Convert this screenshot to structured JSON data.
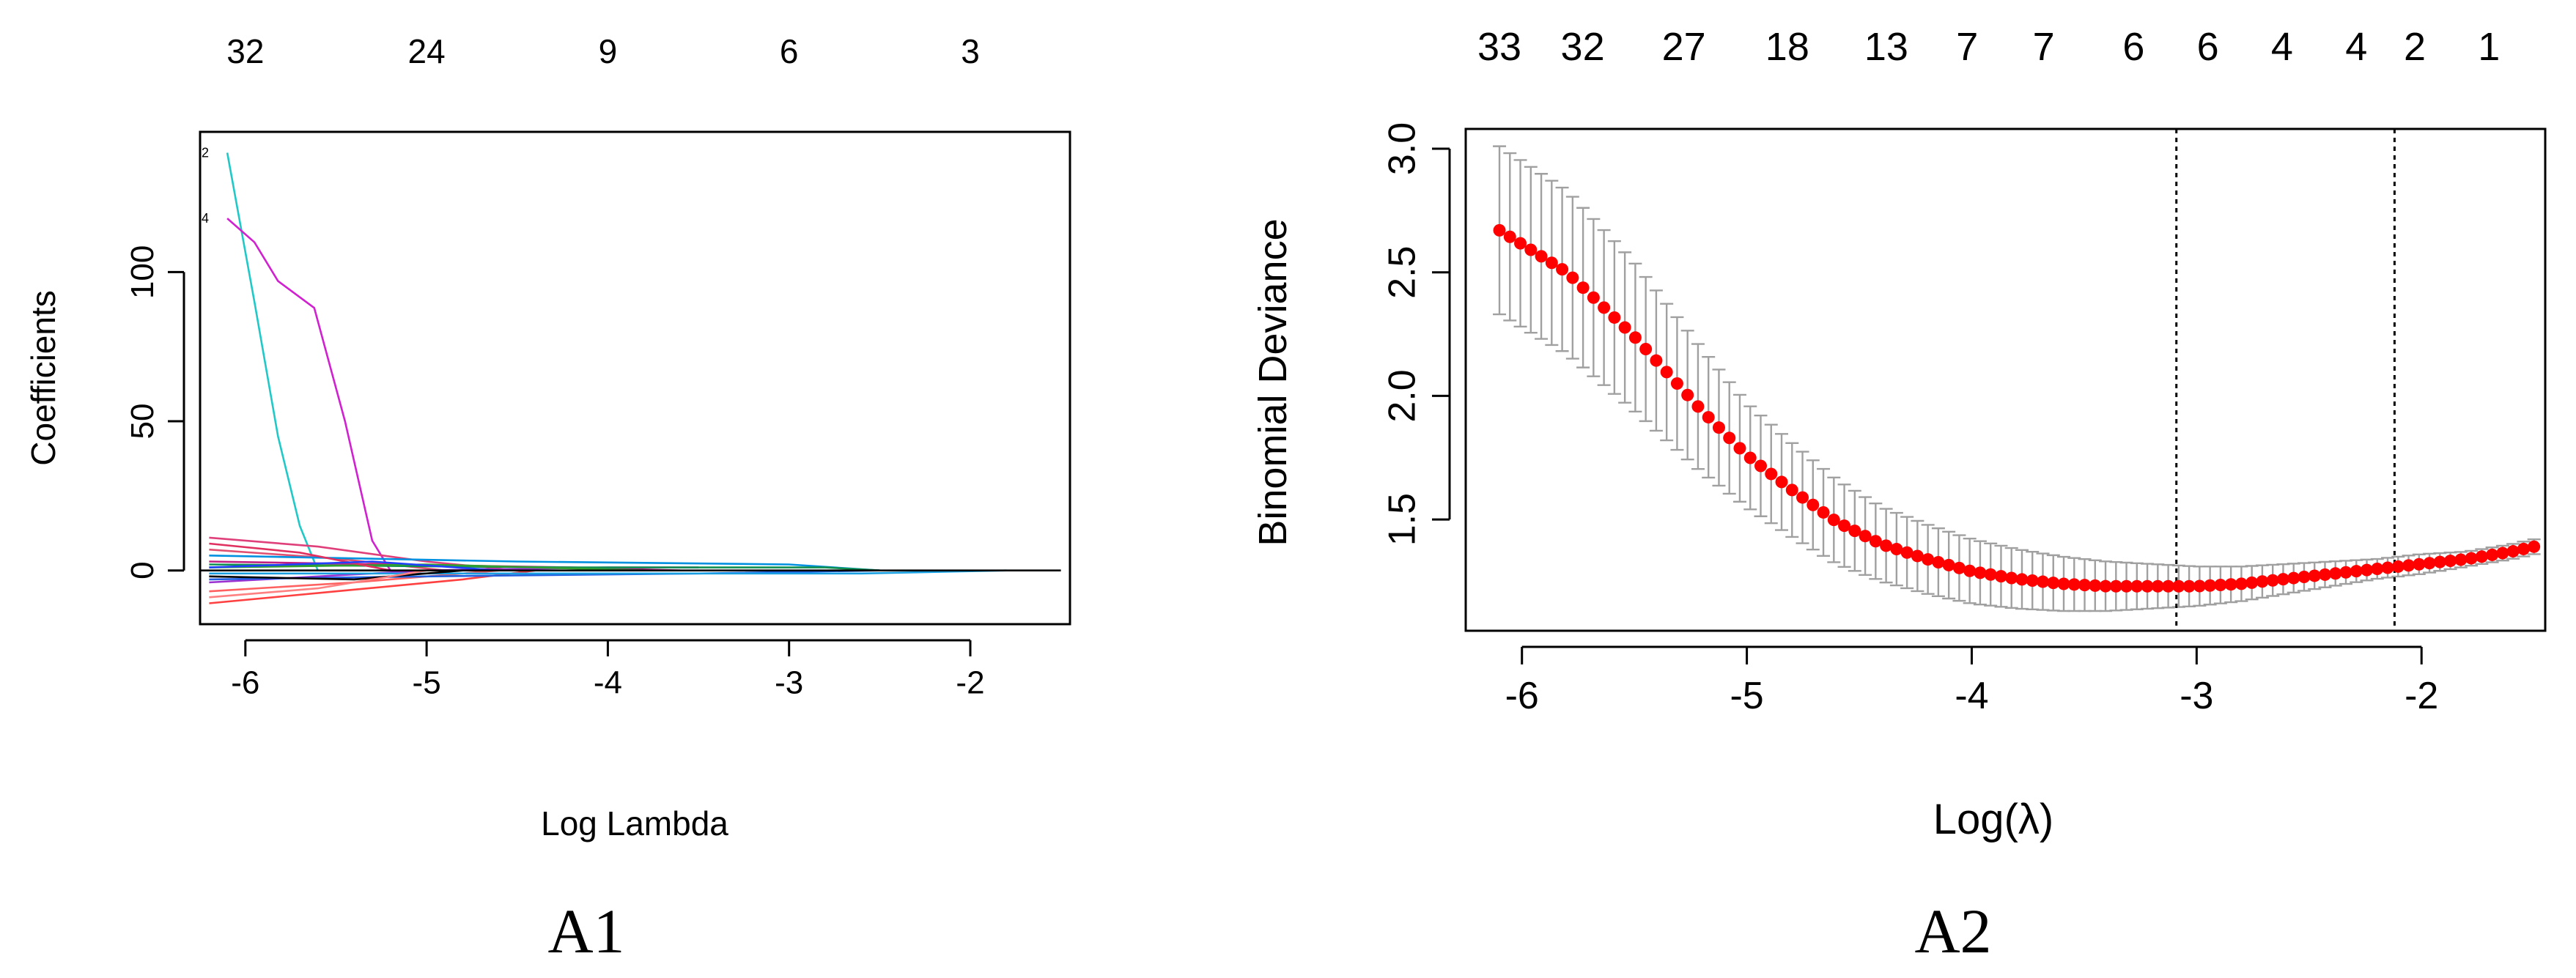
{
  "chart_data": [
    {
      "panel_label": "A1",
      "type": "line",
      "xlabel": "Log Lambda",
      "ylabel": "Coefficients",
      "xlim": [
        -6.25,
        -1.45
      ],
      "ylim": [
        -18,
        147
      ],
      "x_ticks": [
        "-6",
        "-5",
        "-4",
        "-3",
        "-2"
      ],
      "y_ticks": [
        "0",
        "50",
        "100"
      ],
      "top_axis": {
        "positions": [
          -6.0,
          -5.0,
          -4.0,
          -3.0,
          -2.0
        ],
        "labels": [
          "32",
          "24",
          "9",
          "6",
          "3"
        ]
      },
      "left_edge_labels": [
        {
          "text": "2",
          "y": 140
        },
        {
          "text": "4",
          "y": 118
        }
      ],
      "series": [
        {
          "color": "#20c8c8",
          "x": [
            -6.1,
            -5.95,
            -5.82,
            -5.7,
            -5.6
          ],
          "y": [
            140,
            90,
            45,
            15,
            0
          ]
        },
        {
          "color": "#d020d0",
          "x": [
            -6.1,
            -5.95,
            -5.82,
            -5.62,
            -5.45,
            -5.3,
            -5.2
          ],
          "y": [
            118,
            110,
            97,
            88,
            50,
            10,
            0
          ]
        },
        {
          "color": "#e0407a",
          "x": [
            -6.2,
            -5.6,
            -5.0,
            -4.5
          ],
          "y": [
            11,
            8,
            3,
            0
          ]
        },
        {
          "color": "#ff4040",
          "x": [
            -6.2,
            -5.5,
            -4.8,
            -4.4
          ],
          "y": [
            -11,
            -7,
            -3,
            0
          ]
        },
        {
          "color": "#e05070",
          "x": [
            -6.2,
            -5.5,
            -4.9
          ],
          "y": [
            7,
            4,
            0
          ]
        },
        {
          "color": "#ff6060",
          "x": [
            -6.2,
            -5.4,
            -4.6
          ],
          "y": [
            -7,
            -4,
            0
          ]
        },
        {
          "color": "#c02080",
          "x": [
            -6.2,
            -5.2,
            -4.2,
            -3.6
          ],
          "y": [
            3,
            2,
            1,
            0
          ]
        },
        {
          "color": "#9a30d0",
          "x": [
            -6.2,
            -5.0,
            -4.0,
            -3.5
          ],
          "y": [
            -4,
            0,
            1,
            1
          ]
        },
        {
          "color": "#2060e0",
          "x": [
            -6.2,
            -5.0,
            -3.5,
            -2.5
          ],
          "y": [
            -3,
            -2,
            -1,
            0
          ]
        },
        {
          "color": "#0090e0",
          "x": [
            -6.2,
            -4.5,
            -3.0,
            -2.5
          ],
          "y": [
            5,
            3,
            2,
            0
          ]
        },
        {
          "color": "#1aa0e0",
          "x": [
            -6.2,
            -4.0,
            -2.6,
            -1.8
          ],
          "y": [
            -1,
            -1,
            -1,
            0
          ]
        },
        {
          "color": "#109050",
          "x": [
            -6.2,
            -4.2,
            -2.8,
            -2.5
          ],
          "y": [
            2,
            1,
            1,
            0
          ]
        },
        {
          "color": "#30a030",
          "x": [
            -6.2,
            -5.0,
            -3.8
          ],
          "y": [
            1,
            2,
            0
          ]
        },
        {
          "color": "#000000",
          "x": [
            -6.2,
            -5.4,
            -4.8
          ],
          "y": [
            -2,
            -3,
            0
          ]
        },
        {
          "color": "#ff8080",
          "x": [
            -6.2,
            -5.6,
            -5.0
          ],
          "y": [
            -9,
            -6,
            0
          ]
        },
        {
          "color": "#e03060",
          "x": [
            -6.2,
            -5.7,
            -5.2
          ],
          "y": [
            9,
            6,
            0
          ]
        },
        {
          "color": "#2040ff",
          "x": [
            -6.2,
            -5.3,
            -4.6
          ],
          "y": [
            1,
            3,
            0
          ]
        },
        {
          "color": "#000000",
          "x": [
            -6.25,
            -1.5
          ],
          "y": [
            0,
            0
          ]
        }
      ]
    },
    {
      "panel_label": "A2",
      "type": "scatter",
      "xlabel": "Log(λ)",
      "ylabel": "Binomial Deviance",
      "xlim": [
        -6.25,
        -1.45
      ],
      "ylim": [
        1.05,
        3.08
      ],
      "x_ticks": [
        "-6",
        "-5",
        "-4",
        "-3",
        "-2"
      ],
      "y_ticks": [
        "1.5",
        "2.0",
        "2.5",
        "3.0"
      ],
      "top_axis": {
        "positions": [
          -6.1,
          -5.73,
          -5.28,
          -4.82,
          -4.38,
          -4.02,
          -3.68,
          -3.28,
          -2.95,
          -2.62,
          -2.29,
          -2.03,
          -1.7
        ],
        "labels": [
          "33",
          "32",
          "27",
          "18",
          "13",
          "7",
          "7",
          "6",
          "6",
          "4",
          "4",
          "2",
          "1"
        ]
      },
      "vlines": [
        -3.09,
        -2.12
      ],
      "point_color": "#ff0000",
      "errorbar_color": "#a0a0a0",
      "curve": {
        "x": [
          -6.1,
          -5.8,
          -5.5,
          -5.2,
          -5.0,
          -4.8,
          -4.6,
          -4.4,
          -4.2,
          -4.0,
          -3.8,
          -3.6,
          -3.4,
          -3.2,
          -3.0,
          -2.8,
          -2.6,
          -2.4,
          -2.2,
          -2.0,
          -1.8,
          -1.6,
          -1.5
        ],
        "y": [
          2.67,
          2.5,
          2.24,
          1.94,
          1.76,
          1.62,
          1.49,
          1.4,
          1.34,
          1.29,
          1.26,
          1.24,
          1.23,
          1.23,
          1.23,
          1.24,
          1.26,
          1.28,
          1.3,
          1.32,
          1.34,
          1.37,
          1.39
        ]
      },
      "band": {
        "x": [
          -6.1,
          -5.8,
          -5.5,
          -5.2,
          -5.0,
          -4.8,
          -4.6,
          -4.4,
          -4.2,
          -4.0,
          -3.8,
          -3.6,
          -3.4,
          -3.2,
          -3.0,
          -2.8,
          -2.6,
          -2.4,
          -2.2,
          -2.0,
          -1.8
        ],
        "half_width": [
          0.34,
          0.33,
          0.3,
          0.25,
          0.21,
          0.19,
          0.17,
          0.15,
          0.14,
          0.13,
          0.12,
          0.11,
          0.1,
          0.09,
          0.08,
          0.07,
          0.06,
          0.05,
          0.04,
          0.04,
          0.03
        ]
      }
    }
  ]
}
